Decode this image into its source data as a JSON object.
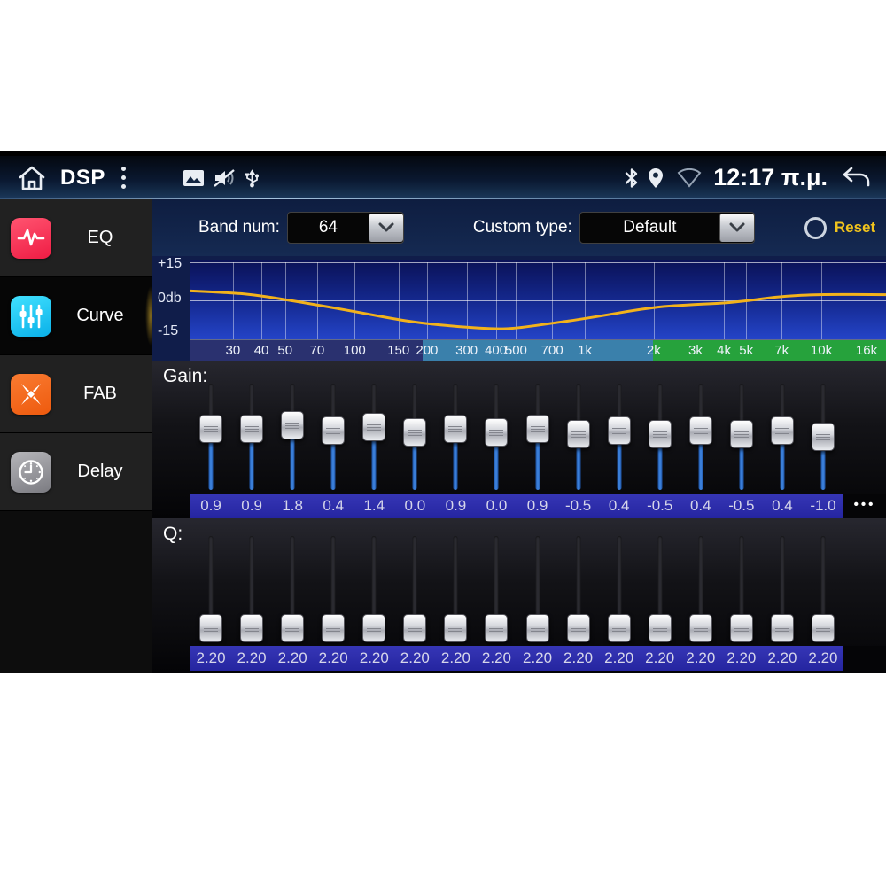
{
  "status_bar": {
    "app_title": "DSP",
    "time": "12:17 π.μ.",
    "icons": [
      "home-icon",
      "overflow-menu-icon",
      "gallery-icon",
      "muted-speaker-icon",
      "usb-icon",
      "bluetooth-icon",
      "location-icon",
      "wifi-icon",
      "back-icon"
    ]
  },
  "sidebar": {
    "items": [
      {
        "label": "EQ",
        "icon": "eq-waveform-icon",
        "selected": false
      },
      {
        "label": "Curve",
        "icon": "curve-sliders-icon",
        "selected": true
      },
      {
        "label": "FAB",
        "icon": "fab-arrows-icon",
        "selected": false
      },
      {
        "label": "Delay",
        "icon": "delay-clock-icon",
        "selected": false
      }
    ]
  },
  "controls": {
    "band_num_label": "Band num:",
    "band_num_value": "64",
    "custom_type_label": "Custom type:",
    "custom_type_value": "Default",
    "reset_label": "Reset"
  },
  "chart_data": {
    "type": "line",
    "title": "EQ frequency response curve",
    "ylabel_ticks": [
      "+15",
      "0db",
      "-15"
    ],
    "ylim": [
      -15,
      15
    ],
    "curve_color": "#f2b21c",
    "grid": true,
    "x_ticks": [
      {
        "label": "30",
        "pos": 0.061
      },
      {
        "label": "40",
        "pos": 0.102
      },
      {
        "label": "50",
        "pos": 0.136
      },
      {
        "label": "70",
        "pos": 0.182
      },
      {
        "label": "100",
        "pos": 0.236
      },
      {
        "label": "150",
        "pos": 0.299
      },
      {
        "label": "200",
        "pos": 0.34
      },
      {
        "label": "300",
        "pos": 0.397
      },
      {
        "label": "400",
        "pos": 0.439
      },
      {
        "label": "500",
        "pos": 0.468
      },
      {
        "label": "700",
        "pos": 0.52
      },
      {
        "label": "1k",
        "pos": 0.567
      },
      {
        "label": "2k",
        "pos": 0.666
      },
      {
        "label": "3k",
        "pos": 0.726
      },
      {
        "label": "4k",
        "pos": 0.767
      },
      {
        "label": "5k",
        "pos": 0.799
      },
      {
        "label": "7k",
        "pos": 0.85
      },
      {
        "label": "10k",
        "pos": 0.907
      },
      {
        "label": "16k",
        "pos": 0.972
      }
    ],
    "band_segments": [
      {
        "name": "low",
        "from": 0.0,
        "to": 0.334,
        "color": "#2a316f"
      },
      {
        "name": "mid",
        "from": 0.334,
        "to": 0.665,
        "color": "#3a80ab"
      },
      {
        "name": "high",
        "from": 0.665,
        "to": 1.0,
        "color": "#26a23c"
      }
    ],
    "points": [
      {
        "x": 0.0,
        "db": 3.7
      },
      {
        "x": 0.061,
        "db": 3.0
      },
      {
        "x": 0.102,
        "db": 1.8
      },
      {
        "x": 0.136,
        "db": 0.3
      },
      {
        "x": 0.182,
        "db": -1.8
      },
      {
        "x": 0.236,
        "db": -4.4
      },
      {
        "x": 0.299,
        "db": -7.6
      },
      {
        "x": 0.34,
        "db": -9.2
      },
      {
        "x": 0.397,
        "db": -10.6
      },
      {
        "x": 0.439,
        "db": -11.3
      },
      {
        "x": 0.468,
        "db": -11.0
      },
      {
        "x": 0.52,
        "db": -9.0
      },
      {
        "x": 0.567,
        "db": -7.2
      },
      {
        "x": 0.666,
        "db": -2.6
      },
      {
        "x": 0.726,
        "db": -1.6
      },
      {
        "x": 0.767,
        "db": -1.1
      },
      {
        "x": 0.799,
        "db": -0.2
      },
      {
        "x": 0.85,
        "db": 1.6
      },
      {
        "x": 0.907,
        "db": 2.4
      },
      {
        "x": 1.0,
        "db": 2.2
      }
    ]
  },
  "gain": {
    "label": "Gain:",
    "values": [
      "0.9",
      "0.9",
      "1.8",
      "0.4",
      "1.4",
      "0.0",
      "0.9",
      "0.0",
      "0.9",
      "-0.5",
      "0.4",
      "-0.5",
      "0.4",
      "-0.5",
      "0.4",
      "-1.0"
    ],
    "more_label": "•••"
  },
  "q": {
    "label": "Q:",
    "values": [
      "2.20",
      "2.20",
      "2.20",
      "2.20",
      "2.20",
      "2.20",
      "2.20",
      "2.20",
      "2.20",
      "2.20",
      "2.20",
      "2.20",
      "2.20",
      "2.20",
      "2.20",
      "2.20"
    ],
    "more_label": ""
  }
}
